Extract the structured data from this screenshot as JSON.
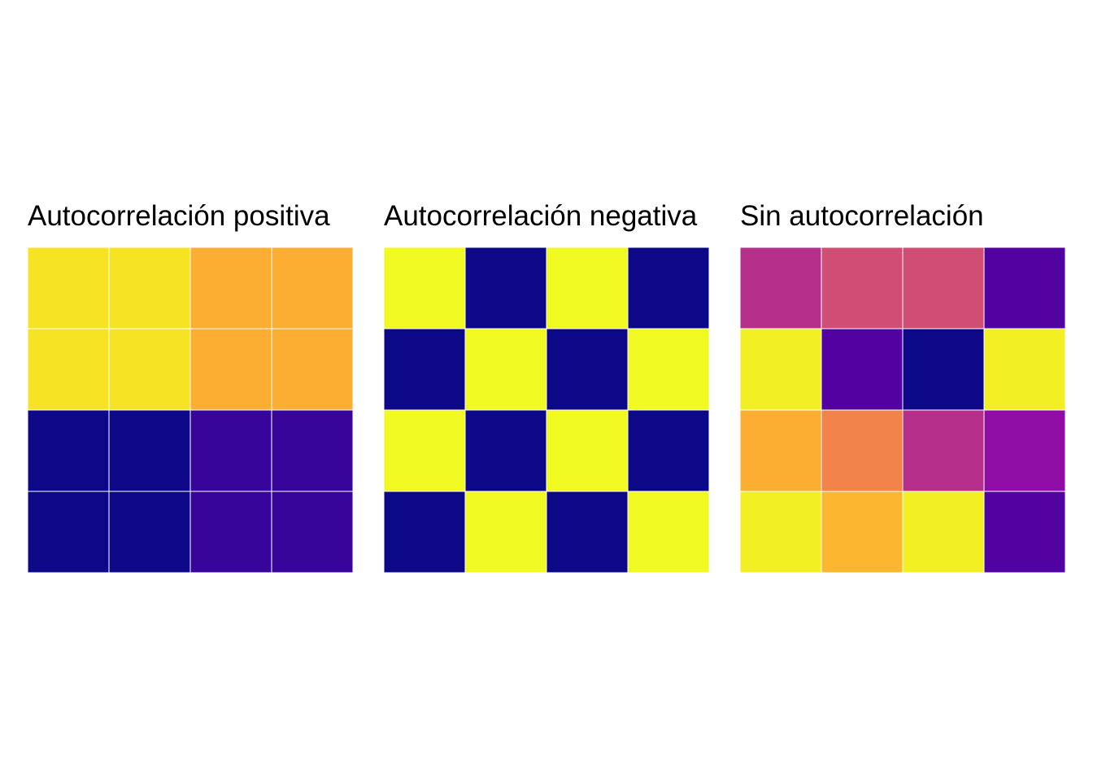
{
  "chart_data": [
    {
      "type": "heatmap",
      "title": "Autocorrelación positiva",
      "colormap": "plasma",
      "value_range": [
        0,
        1
      ],
      "grid": [
        [
          0.95,
          0.95,
          0.82,
          0.82
        ],
        [
          0.95,
          0.95,
          0.82,
          0.82
        ],
        [
          0.0,
          0.0,
          0.08,
          0.08
        ],
        [
          0.0,
          0.0,
          0.08,
          0.08
        ]
      ]
    },
    {
      "type": "heatmap",
      "title": "Autocorrelación negativa",
      "colormap": "plasma",
      "value_range": [
        0,
        1
      ],
      "grid": [
        [
          1.0,
          0.0,
          1.0,
          0.0
        ],
        [
          0.0,
          1.0,
          0.0,
          1.0
        ],
        [
          1.0,
          0.0,
          1.0,
          0.0
        ],
        [
          0.0,
          1.0,
          0.0,
          1.0
        ]
      ]
    },
    {
      "type": "heatmap",
      "title": "Sin autocorrelación",
      "colormap": "plasma",
      "value_range": [
        0,
        1
      ],
      "grid": [
        [
          0.42,
          0.52,
          0.52,
          0.14
        ],
        [
          0.98,
          0.14,
          0.0,
          0.98
        ],
        [
          0.82,
          0.7,
          0.42,
          0.3
        ],
        [
          0.98,
          0.84,
          0.98,
          0.14
        ]
      ]
    }
  ],
  "colors": {
    "background": "#ffffff",
    "cell_border": "#ffffff",
    "title_text": "#000000"
  }
}
